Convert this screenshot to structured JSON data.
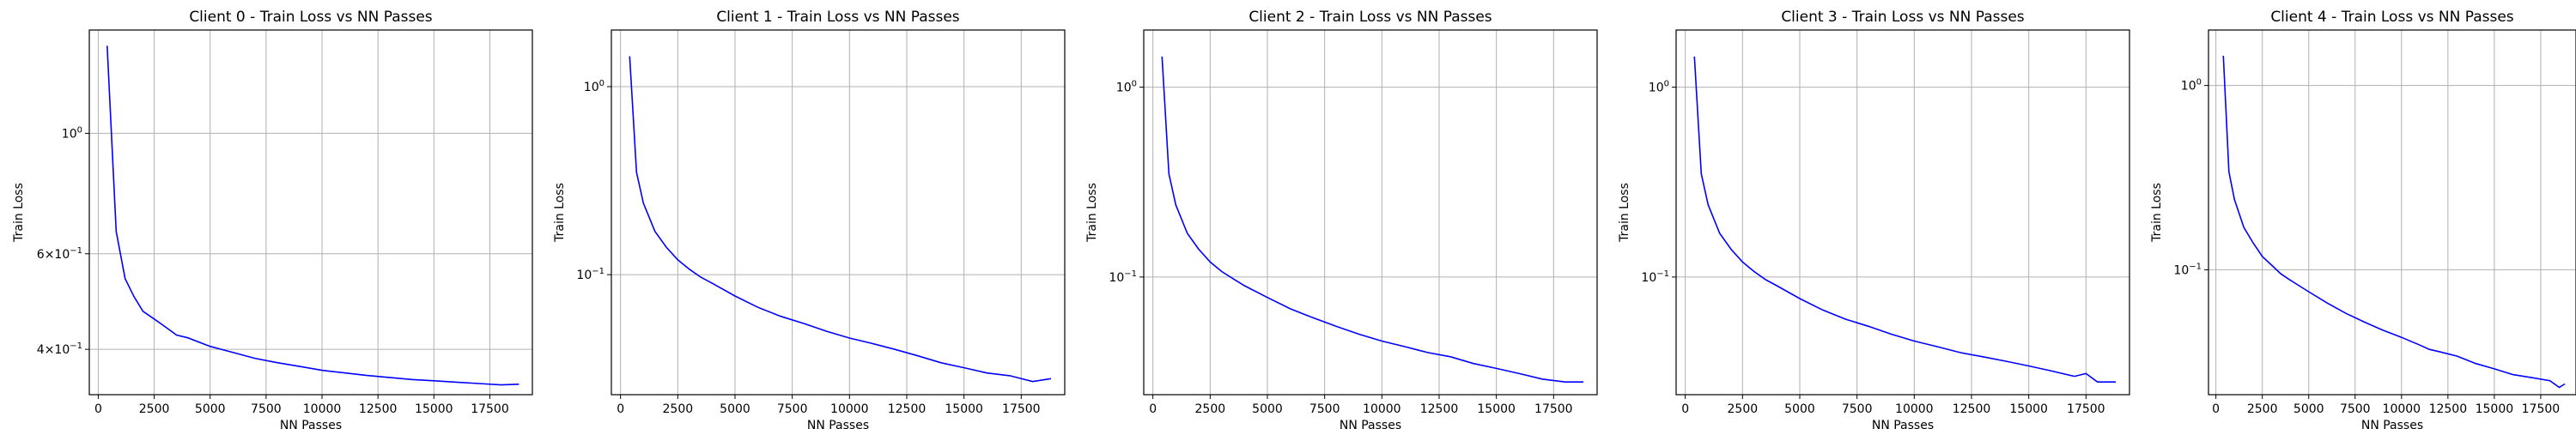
{
  "figure": {
    "line_color": "#0000ff",
    "grid_color": "#b0b0b0"
  },
  "chart_data": [
    {
      "type": "line",
      "title": "Client 0 - Train Loss vs NN Passes",
      "xlabel": "NN Passes",
      "ylabel": "Train Loss",
      "yscale": "log",
      "grid": true,
      "xlim": [
        -400,
        19400
      ],
      "ylim": [
        0.33,
        1.55
      ],
      "xticks": [
        0,
        2500,
        5000,
        7500,
        10000,
        12500,
        15000,
        17500
      ],
      "xtick_labels": [
        "0",
        "2500",
        "5000",
        "7500",
        "10000",
        "12500",
        "15000",
        "17500"
      ],
      "yticks": [
        1.0,
        0.6,
        0.4
      ],
      "ytick_labels": [
        "10^0",
        "6×10^-1",
        "4×10^-1"
      ],
      "series": [
        {
          "x": [
            400,
            800,
            1200,
            1600,
            2000,
            2500,
            3000,
            3500,
            4000,
            5000,
            6000,
            7000,
            8000,
            9000,
            10000,
            11000,
            12000,
            13000,
            14000,
            15000,
            16000,
            17000,
            18000,
            18800
          ],
          "y": [
            1.45,
            0.66,
            0.54,
            0.5,
            0.47,
            0.455,
            0.44,
            0.425,
            0.42,
            0.405,
            0.395,
            0.385,
            0.378,
            0.372,
            0.366,
            0.362,
            0.358,
            0.355,
            0.352,
            0.35,
            0.348,
            0.346,
            0.344,
            0.345
          ]
        }
      ]
    },
    {
      "type": "line",
      "title": "Client 1 - Train Loss vs NN Passes",
      "xlabel": "NN Passes",
      "ylabel": "Train Loss",
      "yscale": "log",
      "grid": true,
      "xlim": [
        -400,
        19400
      ],
      "ylim": [
        0.023,
        2.0
      ],
      "xticks": [
        0,
        2500,
        5000,
        7500,
        10000,
        12500,
        15000,
        17500
      ],
      "xtick_labels": [
        "0",
        "2500",
        "5000",
        "7500",
        "10000",
        "12500",
        "15000",
        "17500"
      ],
      "yticks": [
        1.0,
        0.1
      ],
      "ytick_labels": [
        "10^0",
        "10^-1"
      ],
      "series": [
        {
          "x": [
            400,
            700,
            1000,
            1500,
            2000,
            2500,
            3000,
            3500,
            4000,
            5000,
            6000,
            7000,
            8000,
            9000,
            10000,
            11000,
            12000,
            13000,
            14000,
            15000,
            16000,
            17000,
            18000,
            18800
          ],
          "y": [
            1.45,
            0.35,
            0.24,
            0.17,
            0.14,
            0.12,
            0.107,
            0.097,
            0.09,
            0.077,
            0.067,
            0.06,
            0.055,
            0.05,
            0.046,
            0.043,
            0.04,
            0.037,
            0.034,
            0.032,
            0.03,
            0.029,
            0.027,
            0.028
          ]
        }
      ]
    },
    {
      "type": "line",
      "title": "Client 2 - Train Loss vs NN Passes",
      "xlabel": "NN Passes",
      "ylabel": "Train Loss",
      "yscale": "log",
      "grid": true,
      "xlim": [
        -400,
        19400
      ],
      "ylim": [
        0.024,
        2.0
      ],
      "xticks": [
        0,
        2500,
        5000,
        7500,
        10000,
        12500,
        15000,
        17500
      ],
      "xtick_labels": [
        "0",
        "2500",
        "5000",
        "7500",
        "10000",
        "12500",
        "15000",
        "17500"
      ],
      "yticks": [
        1.0,
        0.1
      ],
      "ytick_labels": [
        "10^0",
        "10^-1"
      ],
      "series": [
        {
          "x": [
            400,
            700,
            1000,
            1500,
            2000,
            2500,
            3000,
            3500,
            4000,
            5000,
            6000,
            7000,
            8000,
            9000,
            10000,
            11000,
            12000,
            13000,
            14000,
            15000,
            16000,
            17000,
            18000,
            18800
          ],
          "y": [
            1.45,
            0.35,
            0.24,
            0.17,
            0.14,
            0.12,
            0.107,
            0.098,
            0.09,
            0.078,
            0.068,
            0.061,
            0.055,
            0.05,
            0.046,
            0.043,
            0.04,
            0.038,
            0.035,
            0.033,
            0.031,
            0.029,
            0.028,
            0.028
          ]
        }
      ]
    },
    {
      "type": "line",
      "title": "Client 3 - Train Loss vs NN Passes",
      "xlabel": "NN Passes",
      "ylabel": "Train Loss",
      "yscale": "log",
      "grid": true,
      "xlim": [
        -400,
        19400
      ],
      "ylim": [
        0.024,
        2.0
      ],
      "xticks": [
        0,
        2500,
        5000,
        7500,
        10000,
        12500,
        15000,
        17500
      ],
      "xtick_labels": [
        "0",
        "2500",
        "5000",
        "7500",
        "10000",
        "12500",
        "15000",
        "17500"
      ],
      "yticks": [
        1.0,
        0.1
      ],
      "ytick_labels": [
        "10^0",
        "10^-1"
      ],
      "series": [
        {
          "x": [
            400,
            700,
            1000,
            1500,
            2000,
            2500,
            3000,
            3500,
            4000,
            5000,
            6000,
            7000,
            8000,
            9000,
            10000,
            11000,
            12000,
            13000,
            14000,
            15000,
            16000,
            17000,
            17500,
            18000,
            18800
          ],
          "y": [
            1.45,
            0.35,
            0.24,
            0.17,
            0.14,
            0.12,
            0.107,
            0.097,
            0.09,
            0.077,
            0.067,
            0.06,
            0.055,
            0.05,
            0.046,
            0.043,
            0.04,
            0.038,
            0.036,
            0.034,
            0.032,
            0.03,
            0.031,
            0.028,
            0.028
          ]
        }
      ]
    },
    {
      "type": "line",
      "title": "Client 4 - Train Loss vs NN Passes",
      "xlabel": "NN Passes",
      "ylabel": "Train Loss",
      "yscale": "log",
      "grid": true,
      "xlim": [
        -400,
        19400
      ],
      "ylim": [
        0.021,
        2.0
      ],
      "xticks": [
        0,
        2500,
        5000,
        7500,
        10000,
        12500,
        15000,
        17500
      ],
      "xtick_labels": [
        "0",
        "2500",
        "5000",
        "7500",
        "10000",
        "12500",
        "15000",
        "17500"
      ],
      "yticks": [
        1.0,
        0.1
      ],
      "ytick_labels": [
        "10^0",
        "10^-1"
      ],
      "series": [
        {
          "x": [
            400,
            700,
            1000,
            1500,
            2000,
            2500,
            3000,
            3500,
            4000,
            5000,
            6000,
            7000,
            8000,
            9000,
            10000,
            11000,
            11500,
            12000,
            13000,
            14000,
            15000,
            16000,
            17000,
            18000,
            18500,
            18800
          ],
          "y": [
            1.45,
            0.34,
            0.24,
            0.17,
            0.14,
            0.118,
            0.106,
            0.095,
            0.088,
            0.076,
            0.066,
            0.058,
            0.052,
            0.047,
            0.043,
            0.039,
            0.037,
            0.036,
            0.034,
            0.031,
            0.029,
            0.027,
            0.026,
            0.025,
            0.023,
            0.024
          ]
        }
      ]
    }
  ]
}
